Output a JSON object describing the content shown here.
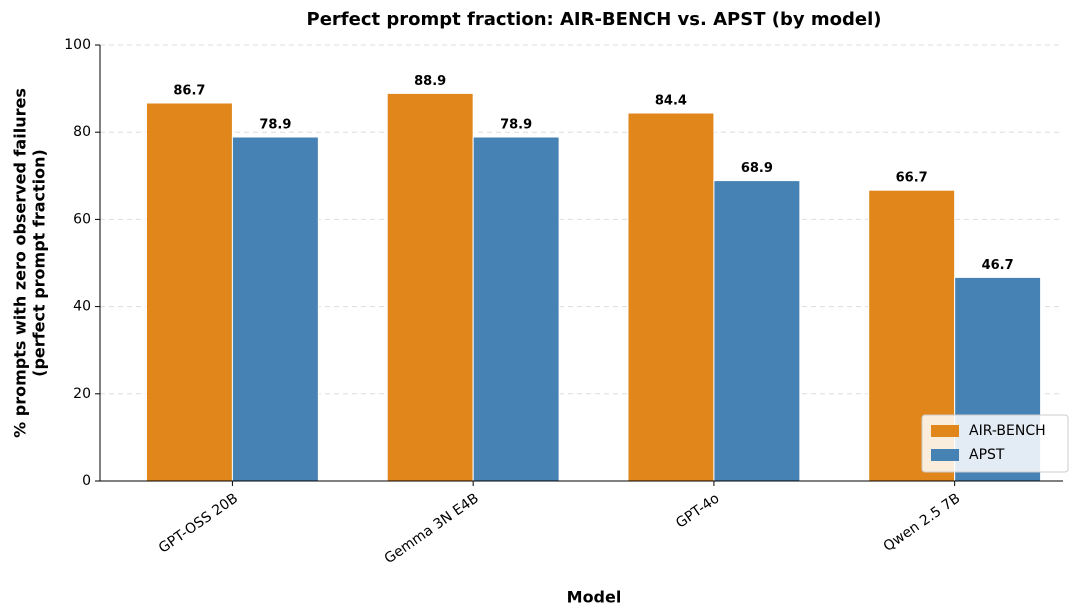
{
  "chart_data": {
    "type": "bar",
    "title": "Perfect prompt fraction: AIR-BENCH vs. APST (by model)",
    "xlabel": "Model",
    "ylabel": "% prompts with zero observed failures\n(perfect prompt fraction)",
    "categories": [
      "GPT-OSS 20B",
      "Gemma 3N E4B",
      "GPT-4o",
      "Qwen 2.5 7B"
    ],
    "series": [
      {
        "name": "AIR-BENCH",
        "color": "#e0861a",
        "values": [
          86.7,
          88.9,
          84.4,
          66.7
        ]
      },
      {
        "name": "APST",
        "color": "#4682b4",
        "values": [
          78.9,
          78.9,
          68.9,
          46.7
        ]
      }
    ],
    "ylim": [
      0,
      100
    ],
    "yticks": [
      0,
      20,
      40,
      60,
      80,
      100
    ],
    "grid": true,
    "legend": "lower right"
  }
}
